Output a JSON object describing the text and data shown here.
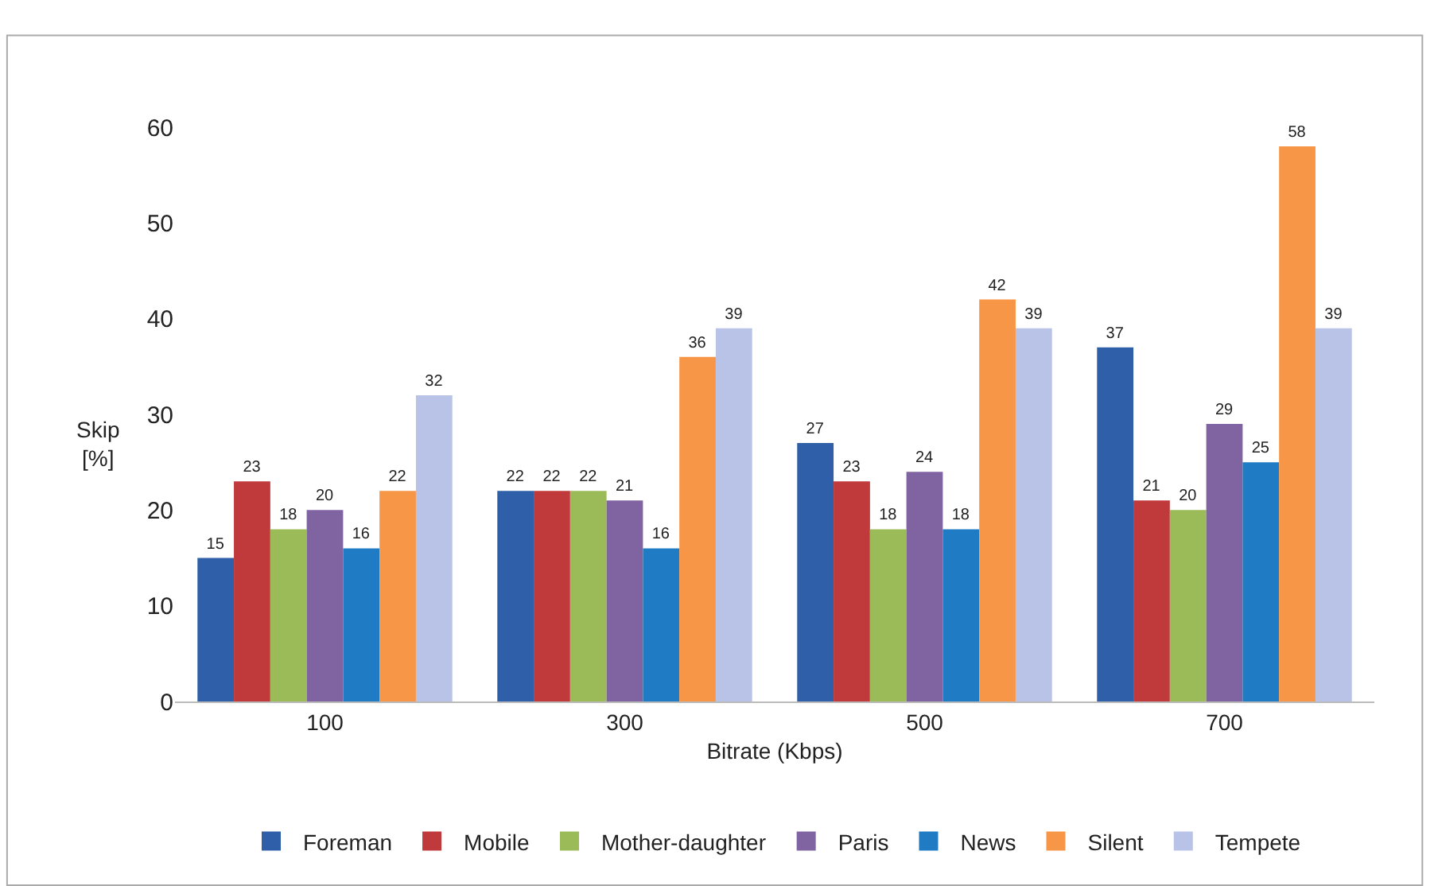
{
  "chart_data": {
    "type": "bar",
    "xlabel": "Bitrate (Kbps)",
    "ylabel": "Skip\n[%]",
    "categories": [
      "100",
      "300",
      "500",
      "700"
    ],
    "series": [
      {
        "name": "Foreman",
        "color": "#2e5fa8",
        "values": [
          15,
          22,
          27,
          37
        ]
      },
      {
        "name": "Mobile",
        "color": "#c0393b",
        "values": [
          23,
          22,
          23,
          21
        ]
      },
      {
        "name": "Mother-daughter",
        "color": "#9bbb59",
        "values": [
          18,
          22,
          18,
          20
        ]
      },
      {
        "name": "Paris",
        "color": "#8064a2",
        "values": [
          20,
          21,
          24,
          29
        ]
      },
      {
        "name": "News",
        "color": "#1f7bc4",
        "values": [
          16,
          16,
          18,
          25
        ]
      },
      {
        "name": "Silent",
        "color": "#f79646",
        "values": [
          22,
          36,
          42,
          58
        ]
      },
      {
        "name": "Tempete",
        "color": "#b9c3e8",
        "values": [
          32,
          39,
          39,
          39
        ]
      }
    ],
    "ylim": [
      0,
      60
    ],
    "yticks": [
      0,
      10,
      20,
      30,
      40,
      50,
      60
    ],
    "data_labels": true,
    "grid": false,
    "legend": "bottom"
  }
}
